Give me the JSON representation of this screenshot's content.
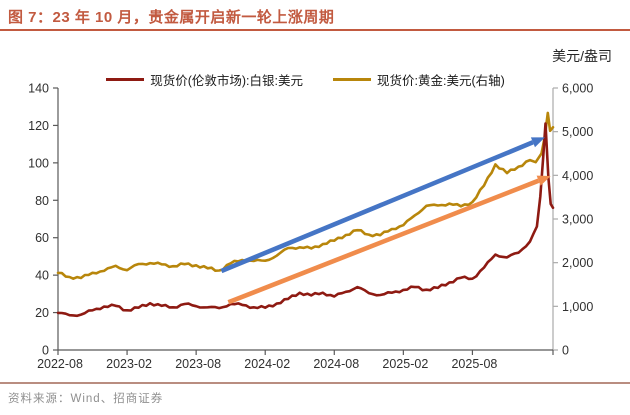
{
  "title": {
    "text": "图 7：23 年 10 月，贵金属开启新一轮上涨周期"
  },
  "axis_unit_label": "美元/盎司",
  "legend": {
    "items": [
      {
        "label": "现货价(伦敦市场):白银:美元",
        "color": "#8E1A12"
      },
      {
        "label": "现货价:黄金:美元(右轴)",
        "color": "#B8860B"
      }
    ]
  },
  "footer": {
    "source": "资料来源：Wind、招商证券"
  },
  "colors": {
    "accent": "#C25A40",
    "divider": "#B98D80",
    "source_text": "#8F8F8F",
    "axis_dark": "#595959",
    "axis_light": "#ABABAB",
    "tick_text": "#303030"
  },
  "chart_data": {
    "type": "line",
    "title": "图 7：23 年 10 月，贵金属开启新一轮上涨周期",
    "xlabel": "",
    "ylabel_right_unit": "美元/盎司",
    "grid": false,
    "legend_position": "top-center",
    "x_axis": {
      "start": "2022-08",
      "months_max": 43,
      "tick_months": [
        0,
        6,
        12,
        18,
        24,
        30,
        36
      ],
      "tick_labels": [
        "2022-08",
        "2023-02",
        "2023-08",
        "2024-02",
        "2024-08",
        "2025-02",
        "2025-08"
      ]
    },
    "left_axis": {
      "min": 0,
      "max": 140,
      "ticks": [
        0,
        20,
        40,
        60,
        80,
        100,
        120,
        140
      ]
    },
    "right_axis": {
      "min": 0,
      "max": 6000,
      "tick_values": [
        0,
        1000,
        2000,
        3000,
        4000,
        5000,
        6000
      ],
      "tick_labels": [
        "0",
        "1,000",
        "2,000",
        "3,000",
        "4,000",
        "5,000",
        "6,000"
      ]
    },
    "series": [
      {
        "name": "现货价:黄金:美元(右轴)",
        "axis": "right",
        "color": "#B8860B",
        "points": [
          [
            0,
            1765
          ],
          [
            1,
            1671
          ],
          [
            2,
            1648
          ],
          [
            3,
            1768
          ],
          [
            4,
            1812
          ],
          [
            5,
            1928
          ],
          [
            6,
            1828
          ],
          [
            7,
            1969
          ],
          [
            8,
            1990
          ],
          [
            9,
            1962
          ],
          [
            10,
            1919
          ],
          [
            11,
            1965
          ],
          [
            12,
            1940
          ],
          [
            13,
            1871
          ],
          [
            14,
            1820
          ],
          [
            15,
            1985
          ],
          [
            16,
            2062
          ],
          [
            17,
            2039
          ],
          [
            18,
            2044
          ],
          [
            19,
            2160
          ],
          [
            20,
            2336
          ],
          [
            21,
            2351
          ],
          [
            22,
            2326
          ],
          [
            23,
            2426
          ],
          [
            24,
            2503
          ],
          [
            25,
            2634
          ],
          [
            26,
            2744
          ],
          [
            27,
            2643
          ],
          [
            28,
            2630
          ],
          [
            29,
            2770
          ],
          [
            30,
            2858
          ],
          [
            31,
            3085
          ],
          [
            32,
            3302
          ],
          [
            33,
            3310
          ],
          [
            34,
            3352
          ],
          [
            35,
            3290
          ],
          [
            36,
            3390
          ],
          [
            37,
            3760
          ],
          [
            38,
            4250
          ],
          [
            39,
            4050
          ],
          [
            40,
            4200
          ],
          [
            41,
            4350
          ],
          [
            41.5,
            4300
          ],
          [
            42,
            4500
          ],
          [
            42.3,
            4900
          ],
          [
            42.55,
            5430
          ],
          [
            42.75,
            5020
          ],
          [
            43,
            5100
          ]
        ]
      },
      {
        "name": "现货价(伦敦市场):白银:美元",
        "axis": "left",
        "color": "#8E1A12",
        "points": [
          [
            0,
            19.8
          ],
          [
            1,
            18.6
          ],
          [
            2,
            18.9
          ],
          [
            3,
            21.2
          ],
          [
            4,
            23.2
          ],
          [
            5,
            23.6
          ],
          [
            6,
            21.2
          ],
          [
            7,
            22.6
          ],
          [
            8,
            25.0
          ],
          [
            9,
            23.6
          ],
          [
            10,
            22.8
          ],
          [
            11,
            24.6
          ],
          [
            12,
            23.4
          ],
          [
            13,
            22.8
          ],
          [
            14,
            22.4
          ],
          [
            15,
            24.6
          ],
          [
            16,
            24.1
          ],
          [
            17,
            22.8
          ],
          [
            18,
            22.6
          ],
          [
            19,
            24.8
          ],
          [
            20,
            27.3
          ],
          [
            21,
            30.6
          ],
          [
            22,
            29.2
          ],
          [
            23,
            30.6
          ],
          [
            24,
            28.6
          ],
          [
            25,
            31.1
          ],
          [
            26,
            33.6
          ],
          [
            27,
            30.4
          ],
          [
            28,
            29.4
          ],
          [
            29,
            30.6
          ],
          [
            30,
            32.1
          ],
          [
            31,
            33.6
          ],
          [
            32,
            32.2
          ],
          [
            33,
            33.2
          ],
          [
            34,
            36.1
          ],
          [
            35,
            38.6
          ],
          [
            36,
            38.1
          ],
          [
            37,
            44
          ],
          [
            38,
            51
          ],
          [
            39,
            49.5
          ],
          [
            40,
            52
          ],
          [
            41,
            58
          ],
          [
            41.6,
            66
          ],
          [
            41.9,
            82
          ],
          [
            42.15,
            103
          ],
          [
            42.35,
            121
          ],
          [
            42.6,
            92
          ],
          [
            42.8,
            78
          ],
          [
            43,
            76
          ]
        ]
      }
    ],
    "annotations": [
      {
        "type": "arrow",
        "name": "gold-trend-arrow",
        "color": "#4575C5",
        "axis": "right",
        "from": [
          14.2,
          1810
        ],
        "to": [
          42.3,
          4870
        ]
      },
      {
        "type": "arrow",
        "name": "silver-trend-arrow",
        "color": "#F08C4C",
        "axis": "left",
        "from": [
          14.8,
          25.5
        ],
        "to": [
          42.8,
          93
        ]
      }
    ]
  }
}
